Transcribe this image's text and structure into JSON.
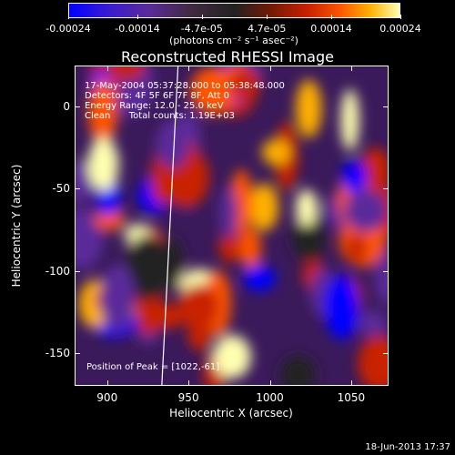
{
  "colorbar": {
    "tick_labels": [
      "-0.00024",
      "-0.00014",
      "-4.7e-05",
      "4.7e-05",
      "0.00014",
      "0.00024"
    ],
    "units": "(photons cm⁻² s⁻¹ asec⁻²)",
    "colors": [
      "#0000ff",
      "#5a2a9a",
      "#222222",
      "#c82000",
      "#ff5500",
      "#ffb000",
      "#ffffb0"
    ]
  },
  "chart_data": {
    "type": "heatmap",
    "title": "Reconstructed RHESSI Image",
    "xlabel": "Heliocentric X (arcsec)",
    "ylabel": "Heliocentric Y (arcsec)",
    "xlim": [
      880,
      1073
    ],
    "ylim": [
      -170,
      25
    ],
    "x_ticks": [
      "900",
      "950",
      "1000",
      "1050"
    ],
    "y_ticks": [
      "0",
      "-50",
      "-100",
      "-150"
    ],
    "color_range": [
      -0.00024,
      0.00024
    ],
    "annotations": {
      "time": "17-May-2004 05:37:28.000 to 05:38:48.000",
      "detectors": "Detectors: 4F 5F 6F 7F 8F, Att 0",
      "energy": "Energy Range: 12.0 - 25.0 keV",
      "method": "Clean",
      "counts": "Total counts: 1.19E+03",
      "peak": "Position of Peak = [1022,-61]"
    },
    "peak": {
      "x": 1022,
      "y": -61
    },
    "limb_line": [
      [
        943,
        25
      ],
      [
        933,
        -170
      ]
    ]
  },
  "timestamp": "18-Jun-2013 17:37"
}
